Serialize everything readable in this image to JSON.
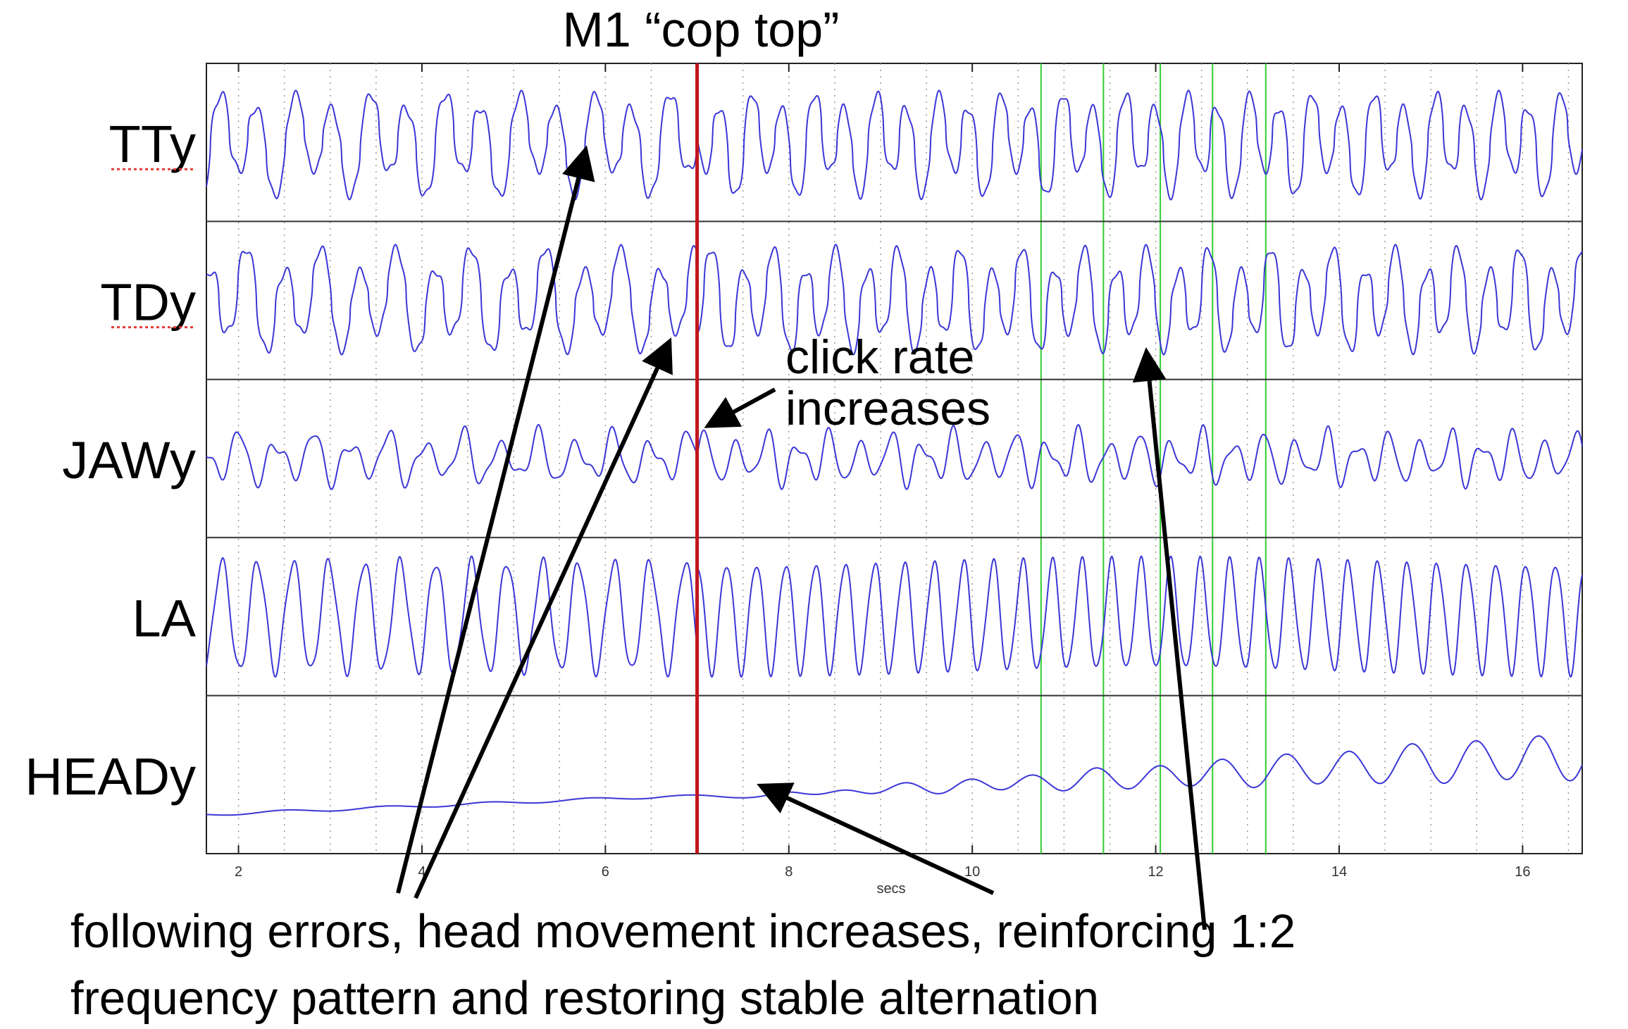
{
  "chart_data": {
    "type": "line",
    "title": "M1 “cop top”",
    "xlabel": "secs",
    "xlim": [
      1.65,
      16.65
    ],
    "xticks": [
      2,
      4,
      6,
      8,
      10,
      12,
      14,
      16
    ],
    "dotted_grid_x": [
      2,
      2.5,
      3,
      3.5,
      4,
      4.5,
      5,
      5.5,
      6,
      6.5,
      7,
      7.5,
      8,
      8.5,
      9,
      9.5,
      10,
      10.5,
      11,
      11.5,
      12,
      12.5,
      13,
      13.5,
      14,
      14.5,
      15,
      15.5,
      16,
      16.5
    ],
    "event_marker": {
      "x": 7.0,
      "color": "#c0161c"
    },
    "green_markers": {
      "x": [
        10.75,
        11.43,
        12.05,
        12.62,
        13.2
      ],
      "color": "#33cc33"
    },
    "series_color": "#3a36d6",
    "series": [
      {
        "name": "TTy",
        "label": "TTy",
        "amplitude": [
          0.35,
          0.5
        ],
        "pattern": "1:2 alternation, large peaks"
      },
      {
        "name": "TDy",
        "label": "TDy",
        "amplitude": [
          0.3,
          0.5
        ],
        "pattern": "1:2 alternation"
      },
      {
        "name": "JAWy",
        "label": "JAWy",
        "amplitude": [
          0.2,
          0.35
        ],
        "pattern": "small oscillation"
      },
      {
        "name": "LA",
        "label": "LA",
        "amplitude": [
          0.35,
          0.55
        ],
        "pattern": "regular oscillation"
      },
      {
        "name": "HEADy",
        "label": "HEADy",
        "amplitude": [
          0.0,
          0.35
        ],
        "pattern": "slow drift then growing oscillation"
      }
    ],
    "annotations": {
      "click_rate": [
        "click rate",
        "increases"
      ],
      "caption": [
        "following errors, head movement increases, reinforcing 1:2",
        "frequency pattern and restoring stable alternation"
      ]
    }
  }
}
